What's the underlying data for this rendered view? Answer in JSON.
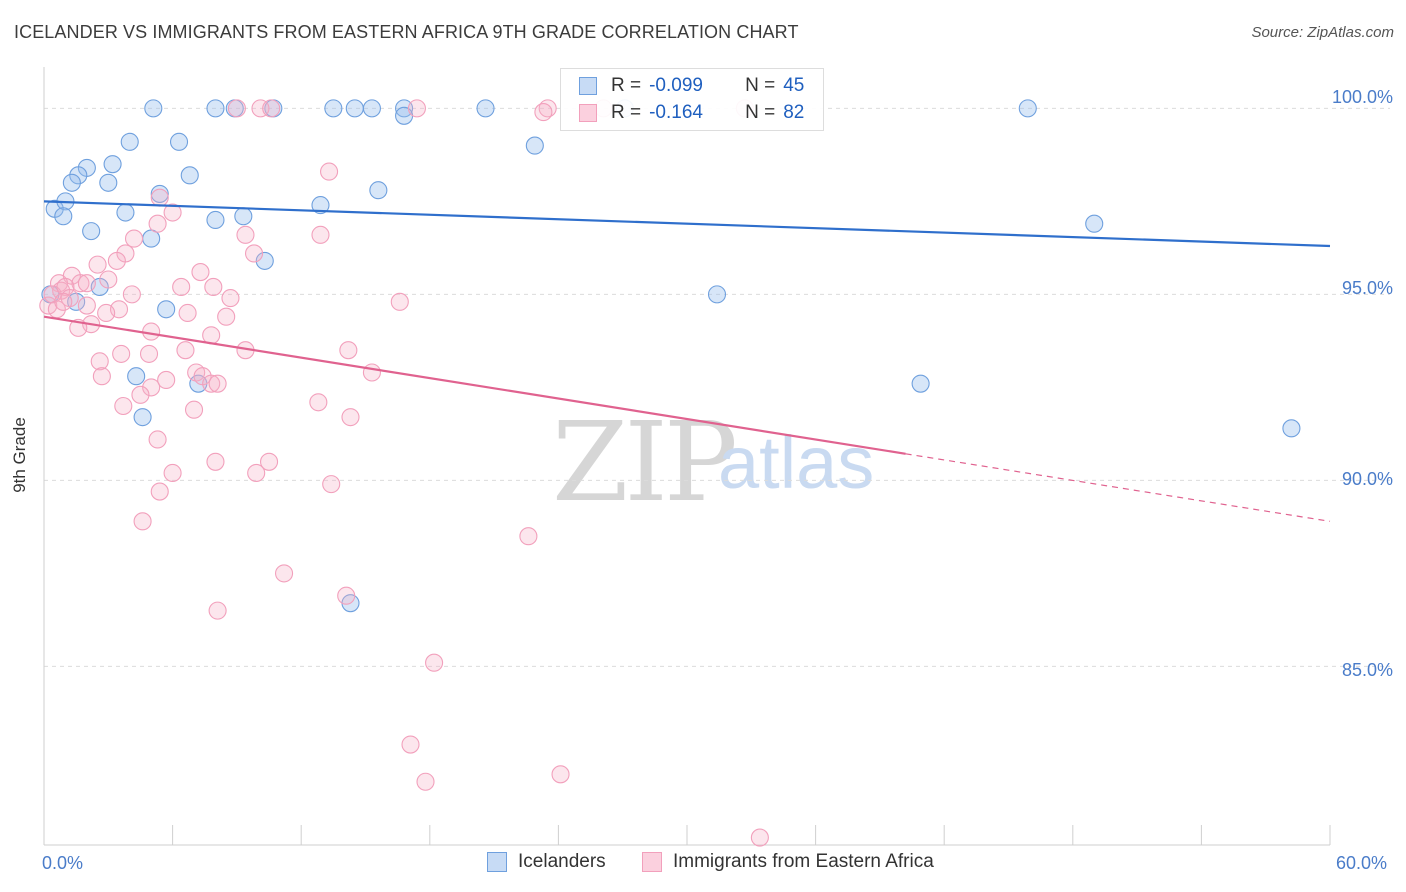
{
  "title": "ICELANDER VS IMMIGRANTS FROM EASTERN AFRICA 9TH GRADE CORRELATION CHART",
  "source": "Source: ZipAtlas.com",
  "watermark": {
    "part1": "ZIP",
    "part2": "atlas"
  },
  "legend": {
    "rows": [
      {
        "r_label": "R =",
        "r_value": "-0.099",
        "n_label": "N =",
        "n_value": "45",
        "color": "#6fa0de"
      },
      {
        "r_label": "R =",
        "r_value": "-0.164",
        "n_label": "N =",
        "n_value": "82",
        "color": "#f2a0bc"
      }
    ]
  },
  "bottom_legend": [
    {
      "label": "Icelanders",
      "color": "#6fa0de"
    },
    {
      "label": "Immigrants from Eastern Africa",
      "color": "#f2a0bc"
    }
  ],
  "chart_data": {
    "type": "scatter",
    "ylabel": "9th Grade",
    "xlabel": "",
    "x_tick_labels": [
      "0.0%",
      "60.0%"
    ],
    "y_tick_labels": [
      "100.0%",
      "95.0%",
      "90.0%",
      "85.0%"
    ],
    "xlim": [
      0,
      60
    ],
    "ylim": [
      80.2,
      101.3
    ],
    "y_gridlines": [
      100.0,
      95.0,
      90.0,
      85.0
    ],
    "grid": true,
    "series": [
      {
        "name": "Icelanders",
        "color": "#6fa0de",
        "trend": {
          "x0": 0,
          "y0": 97.5,
          "x1": 60,
          "y1": 96.3,
          "solid_until": 60
        },
        "points": [
          [
            5.1,
            100.0
          ],
          [
            8.0,
            100.0
          ],
          [
            8.9,
            100.0
          ],
          [
            10.7,
            100.0
          ],
          [
            13.5,
            100.0
          ],
          [
            14.5,
            100.0
          ],
          [
            15.3,
            100.0
          ],
          [
            16.8,
            100.0
          ],
          [
            20.6,
            100.0
          ],
          [
            27.1,
            100.0
          ],
          [
            45.9,
            100.0
          ],
          [
            16.8,
            99.8
          ],
          [
            22.9,
            99.0
          ],
          [
            4.0,
            99.1
          ],
          [
            6.3,
            99.1
          ],
          [
            2.0,
            98.4
          ],
          [
            3.2,
            98.5
          ],
          [
            1.6,
            98.2
          ],
          [
            1.3,
            98.0
          ],
          [
            3.0,
            98.0
          ],
          [
            6.8,
            98.2
          ],
          [
            5.4,
            97.7
          ],
          [
            15.6,
            97.8
          ],
          [
            0.5,
            97.3
          ],
          [
            1.0,
            97.5
          ],
          [
            0.9,
            97.1
          ],
          [
            3.8,
            97.2
          ],
          [
            9.3,
            97.1
          ],
          [
            8.0,
            97.0
          ],
          [
            12.9,
            97.4
          ],
          [
            49.0,
            96.9
          ],
          [
            2.2,
            96.7
          ],
          [
            5.0,
            96.5
          ],
          [
            10.3,
            95.9
          ],
          [
            2.6,
            95.2
          ],
          [
            31.4,
            95.0
          ],
          [
            5.7,
            94.6
          ],
          [
            4.3,
            92.8
          ],
          [
            7.2,
            92.6
          ],
          [
            40.9,
            92.6
          ],
          [
            4.6,
            91.7
          ],
          [
            58.2,
            91.4
          ],
          [
            14.3,
            86.7
          ],
          [
            1.5,
            94.8
          ],
          [
            0.3,
            95.0
          ]
        ]
      },
      {
        "name": "Immigrants from Eastern Africa",
        "color": "#f2a0bc",
        "trend": {
          "x0": 0,
          "y0": 94.4,
          "x1": 60,
          "y1": 88.9,
          "solid_until": 40.2
        },
        "points": [
          [
            9.0,
            100.0
          ],
          [
            10.1,
            100.0
          ],
          [
            10.6,
            100.0
          ],
          [
            17.4,
            100.0
          ],
          [
            23.5,
            100.0
          ],
          [
            23.3,
            99.9
          ],
          [
            26.1,
            100.0
          ],
          [
            32.7,
            100.0
          ],
          [
            13.3,
            98.3
          ],
          [
            5.4,
            97.6
          ],
          [
            6.0,
            97.2
          ],
          [
            5.3,
            96.9
          ],
          [
            9.4,
            96.6
          ],
          [
            12.9,
            96.6
          ],
          [
            4.2,
            96.5
          ],
          [
            3.8,
            96.1
          ],
          [
            9.8,
            96.1
          ],
          [
            3.4,
            95.9
          ],
          [
            2.5,
            95.8
          ],
          [
            7.3,
            95.6
          ],
          [
            1.3,
            95.5
          ],
          [
            0.7,
            95.3
          ],
          [
            1.7,
            95.3
          ],
          [
            2.0,
            95.3
          ],
          [
            3.0,
            95.4
          ],
          [
            6.4,
            95.2
          ],
          [
            7.9,
            95.2
          ],
          [
            0.8,
            95.1
          ],
          [
            4.1,
            95.0
          ],
          [
            8.7,
            94.9
          ],
          [
            16.6,
            94.8
          ],
          [
            2.0,
            94.7
          ],
          [
            3.5,
            94.6
          ],
          [
            6.7,
            94.5
          ],
          [
            2.9,
            94.5
          ],
          [
            8.5,
            94.4
          ],
          [
            2.2,
            94.2
          ],
          [
            1.6,
            94.1
          ],
          [
            5.0,
            94.0
          ],
          [
            7.8,
            93.9
          ],
          [
            6.6,
            93.5
          ],
          [
            9.4,
            93.5
          ],
          [
            14.2,
            93.5
          ],
          [
            3.6,
            93.4
          ],
          [
            4.9,
            93.4
          ],
          [
            2.6,
            93.2
          ],
          [
            7.1,
            92.9
          ],
          [
            15.3,
            92.9
          ],
          [
            7.4,
            92.8
          ],
          [
            2.7,
            92.8
          ],
          [
            5.7,
            92.7
          ],
          [
            7.8,
            92.6
          ],
          [
            8.1,
            92.6
          ],
          [
            5.0,
            92.5
          ],
          [
            4.5,
            92.3
          ],
          [
            3.7,
            92.0
          ],
          [
            12.8,
            92.1
          ],
          [
            7.0,
            91.9
          ],
          [
            14.3,
            91.7
          ],
          [
            5.3,
            91.1
          ],
          [
            8.0,
            90.5
          ],
          [
            10.5,
            90.5
          ],
          [
            6.0,
            90.2
          ],
          [
            9.9,
            90.2
          ],
          [
            13.4,
            89.9
          ],
          [
            5.4,
            89.7
          ],
          [
            4.6,
            88.9
          ],
          [
            22.6,
            88.5
          ],
          [
            11.2,
            87.5
          ],
          [
            14.1,
            86.9
          ],
          [
            8.1,
            86.5
          ],
          [
            18.2,
            85.1
          ],
          [
            17.1,
            82.9
          ],
          [
            17.8,
            81.9
          ],
          [
            24.1,
            82.1
          ],
          [
            33.4,
            80.4
          ],
          [
            0.2,
            94.7
          ],
          [
            0.4,
            95.0
          ],
          [
            1.0,
            95.2
          ],
          [
            0.6,
            94.6
          ],
          [
            1.2,
            94.9
          ],
          [
            0.9,
            94.8
          ]
        ]
      }
    ]
  }
}
